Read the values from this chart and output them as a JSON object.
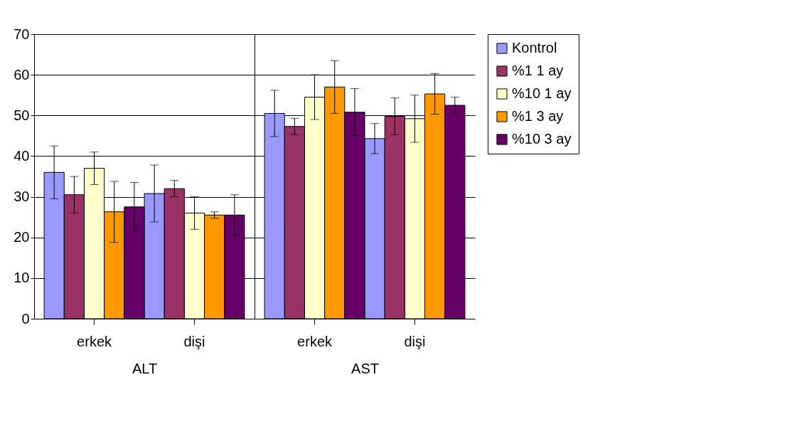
{
  "chart_data": [
    {
      "type": "bar",
      "xlabel": "ALT",
      "categories": [
        "erkek",
        "dişi"
      ],
      "ylim": [
        0,
        70
      ],
      "yticks": [
        0,
        10,
        20,
        30,
        40,
        50,
        60,
        70
      ],
      "grid": "y",
      "legend": "right",
      "series": [
        {
          "name": "Kontrol",
          "color": "#9999ff",
          "values": [
            36,
            30.8
          ],
          "errors": [
            6.5,
            7
          ]
        },
        {
          "name": "%1 1 ay",
          "color": "#993366",
          "values": [
            30.5,
            32
          ],
          "errors": [
            4.5,
            2
          ]
        },
        {
          "name": "%10 1 ay",
          "color": "#ffffcc",
          "values": [
            37,
            26
          ],
          "errors": [
            4,
            4
          ]
        },
        {
          "name": "%1 3 ay",
          "color": "#ff9900",
          "values": [
            26.3,
            25.5
          ],
          "errors": [
            7.5,
            0.8
          ]
        },
        {
          "name": "%10 3 ay",
          "color": "#660066",
          "values": [
            27.5,
            25.5
          ],
          "errors": [
            6,
            5
          ]
        }
      ]
    },
    {
      "type": "bar",
      "xlabel": "AST",
      "categories": [
        "erkek",
        "dişi"
      ],
      "ylim": [
        0,
        70
      ],
      "yticks": [
        0,
        10,
        20,
        30,
        40,
        50,
        60,
        70
      ],
      "grid": "y",
      "tick_labels": "x",
      "legend": "right",
      "series": [
        {
          "name": "Kontrol",
          "color": "#9999ff",
          "values": [
            50.5,
            44.3
          ],
          "errors": [
            5.7,
            3.7
          ]
        },
        {
          "name": "%1 1 ay",
          "color": "#993366",
          "values": [
            47.3,
            49.8
          ],
          "errors": [
            2,
            4.5
          ]
        },
        {
          "name": "%10 1 ay",
          "color": "#ffffcc",
          "values": [
            54.5,
            49.2
          ],
          "errors": [
            5.5,
            5.8
          ]
        },
        {
          "name": "%1 3 ay",
          "color": "#ff9900",
          "values": [
            57,
            55.3
          ],
          "errors": [
            6.5,
            5
          ]
        },
        {
          "name": "%10 3 ay",
          "color": "#660066",
          "values": [
            50.8,
            52.5
          ],
          "errors": [
            5.8,
            2
          ]
        }
      ]
    }
  ]
}
